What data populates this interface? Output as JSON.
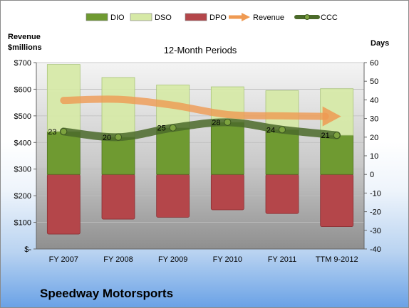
{
  "company": "Speedway Motorsports",
  "chart_data": {
    "type": "bar",
    "title": "12-Month Periods",
    "y_left_label": [
      "Revenue",
      "$millions"
    ],
    "y_right_label": "Days",
    "categories": [
      "FY 2007",
      "FY 2008",
      "FY 2009",
      "FY 2010",
      "FY 2011",
      "TTM 9-2012"
    ],
    "y_left_ticks": [
      "$-",
      "$100",
      "$200",
      "$300",
      "$400",
      "$500",
      "$600",
      "$700"
    ],
    "y_left_range": [
      0,
      700
    ],
    "y_right_range": [
      -40,
      60
    ],
    "y_right_step": 10,
    "series": [
      {
        "name": "DIO",
        "axis": "right",
        "kind": "bar-from-zero",
        "values": [
          23,
          20,
          25,
          28,
          24,
          21
        ],
        "color": "#6f9a31"
      },
      {
        "name": "DSO",
        "axis": "right",
        "kind": "bar-stacked-on-DIO",
        "values": [
          36,
          32,
          23,
          19,
          21,
          25
        ],
        "color": "#d6e9a6"
      },
      {
        "name": "DPO",
        "axis": "right",
        "kind": "bar-below-zero",
        "values": [
          32,
          24,
          23,
          19,
          21,
          28
        ],
        "color": "#b4464a"
      },
      {
        "name": "Revenue",
        "axis": "left",
        "kind": "line-arrow",
        "values": [
          558,
          562,
          540,
          505,
          500,
          498
        ],
        "color": "#ef9a52"
      },
      {
        "name": "CCC",
        "axis": "right",
        "kind": "line",
        "values": [
          23,
          20,
          25,
          28,
          24,
          21
        ],
        "color": "#4b6a2a"
      }
    ],
    "ccc_labels": [
      "23",
      "20",
      "25",
      "28",
      "24",
      "21"
    ],
    "legend": [
      "DIO",
      "DSO",
      "DPO",
      "Revenue",
      "CCC"
    ],
    "legend_position": "top"
  }
}
